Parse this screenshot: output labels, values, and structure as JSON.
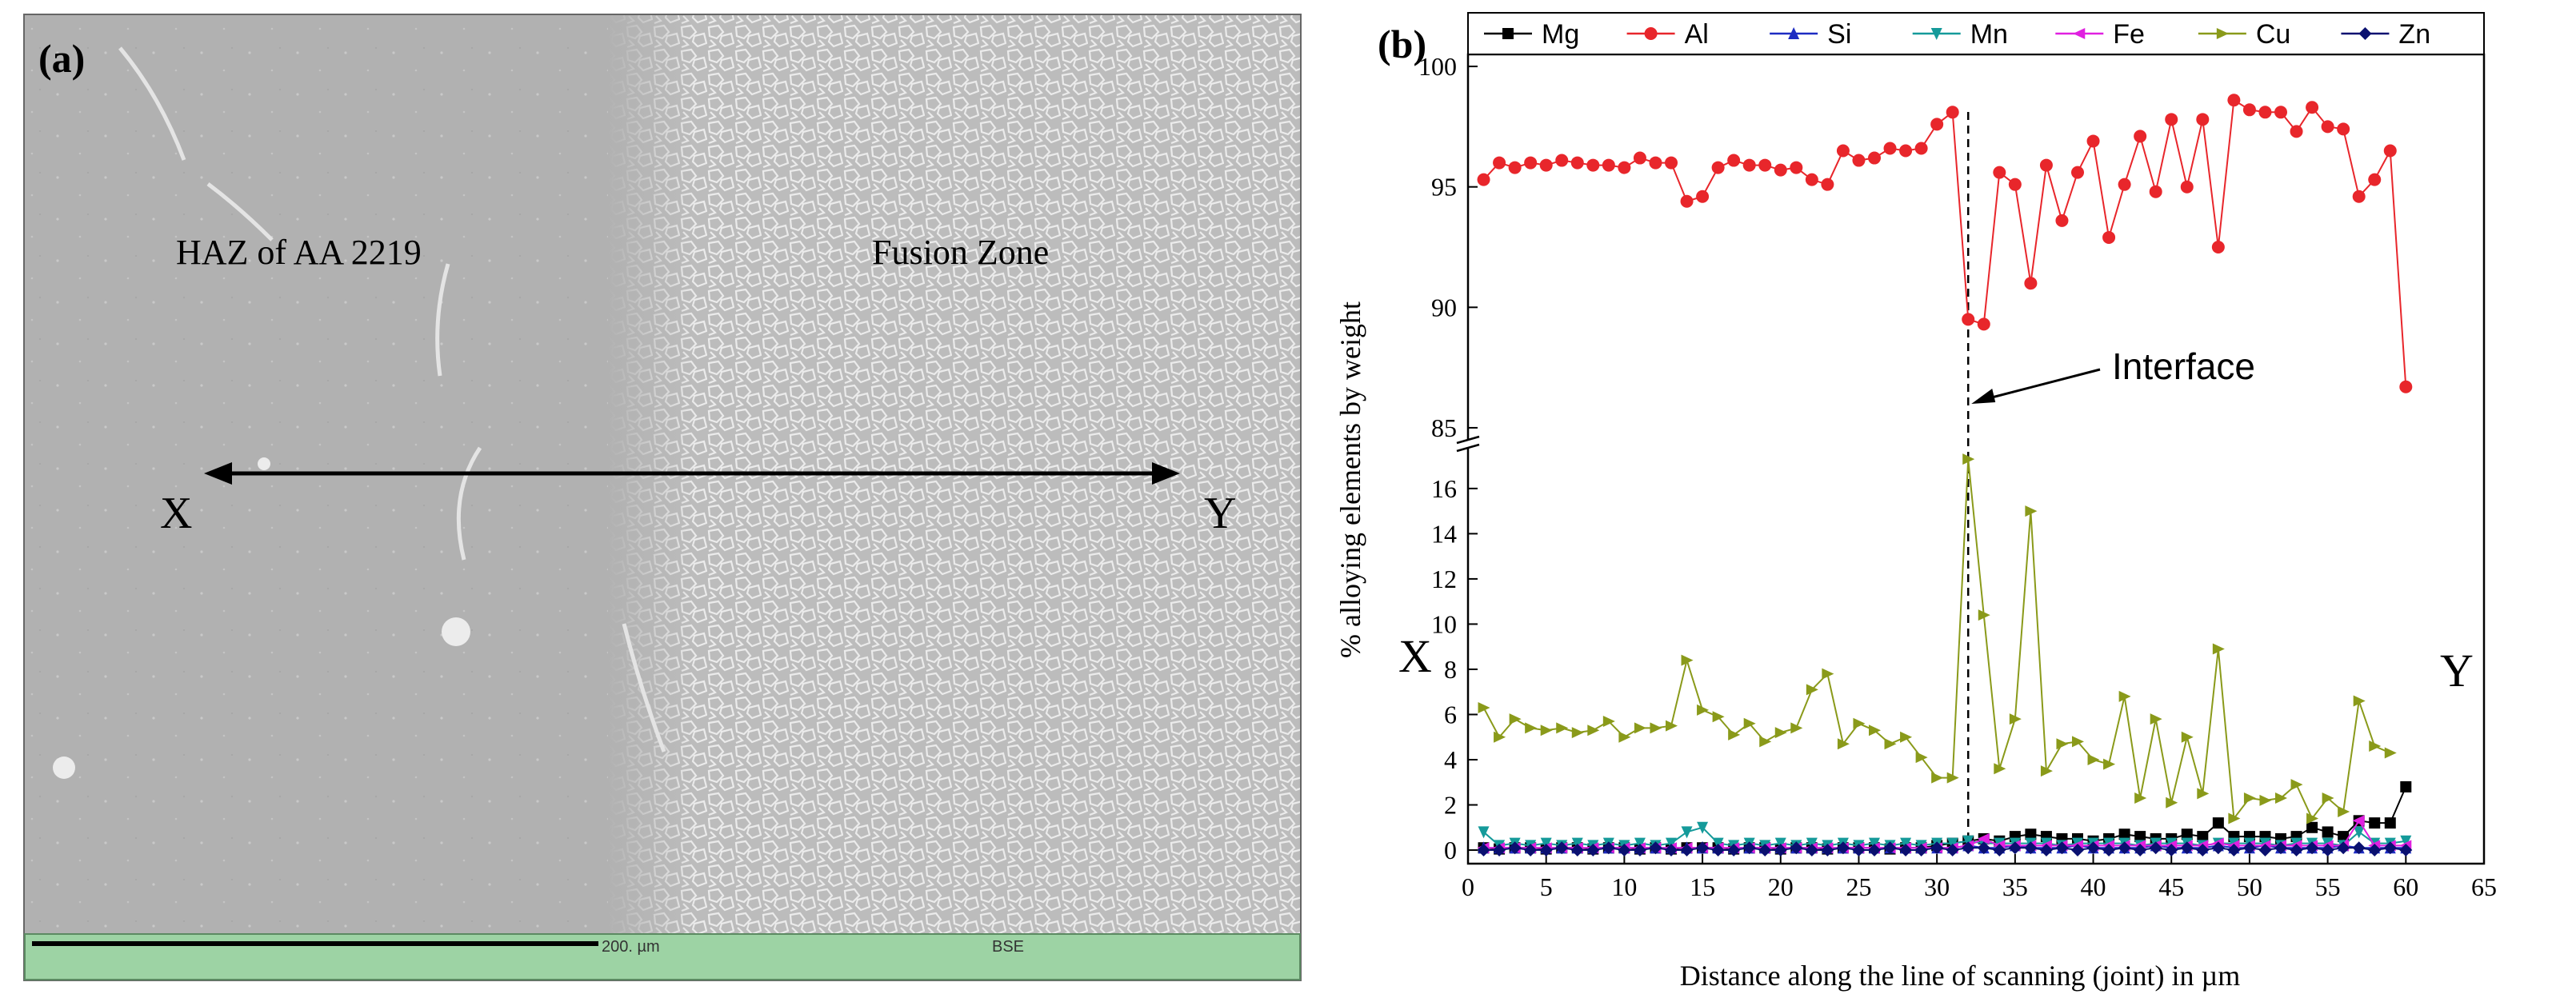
{
  "panel_a": {
    "label": "(a)",
    "haz_label": "HAZ of AA 2219",
    "fusion_label": "Fusion Zone",
    "x_label": "X",
    "y_label": "Y",
    "scalebar_text": "200. µm",
    "mode_text": "BSE"
  },
  "chart_data": {
    "type": "line",
    "panel_label": "(b)",
    "title": "",
    "xlabel": "Distance along the line of scanning (joint) in µm",
    "ylabel": "% alloying elements by weight",
    "xlim": [
      0,
      65
    ],
    "x_ticks": [
      0,
      5,
      10,
      15,
      20,
      25,
      30,
      35,
      40,
      45,
      50,
      55,
      60,
      65
    ],
    "ylim_lower": [
      -0.6,
      17.8
    ],
    "ylim_upper": [
      84.5,
      100.5
    ],
    "y_ticks_lower": [
      0,
      2,
      4,
      6,
      8,
      10,
      12,
      14,
      16
    ],
    "y_ticks_upper": [
      85,
      90,
      95,
      100
    ],
    "axis_break": true,
    "legend_position": "top",
    "annotations": {
      "interface": "Interface",
      "x_marker": "X",
      "y_marker": "Y",
      "interface_x": 32
    },
    "x": [
      1,
      2,
      3,
      4,
      5,
      6,
      7,
      8,
      9,
      10,
      11,
      12,
      13,
      14,
      15,
      16,
      17,
      18,
      19,
      20,
      21,
      22,
      23,
      24,
      25,
      26,
      27,
      28,
      29,
      30,
      31,
      32,
      33,
      34,
      35,
      36,
      37,
      38,
      39,
      40,
      41,
      42,
      43,
      44,
      45,
      46,
      47,
      48,
      49,
      50,
      51,
      52,
      53,
      54,
      55,
      56,
      57,
      58,
      59,
      60
    ],
    "series": [
      {
        "name": "Mg",
        "color": "#000000",
        "marker": "square",
        "values": [
          0.1,
          0.05,
          0.1,
          0.1,
          0.05,
          0.1,
          0.1,
          0.05,
          0.1,
          0.1,
          0.05,
          0.1,
          0.05,
          0.1,
          0.1,
          0.1,
          0.05,
          0.1,
          0.1,
          0.05,
          0.1,
          0.1,
          0.05,
          0.1,
          0.1,
          0.1,
          0.05,
          0.1,
          0.1,
          0.2,
          0.3,
          0.4,
          0.5,
          0.4,
          0.6,
          0.7,
          0.6,
          0.5,
          0.5,
          0.4,
          0.5,
          0.7,
          0.6,
          0.5,
          0.5,
          0.7,
          0.6,
          1.2,
          0.6,
          0.6,
          0.6,
          0.5,
          0.6,
          1.0,
          0.8,
          0.6,
          1.3,
          1.2,
          1.2,
          2.8
        ]
      },
      {
        "name": "Al",
        "color": "#e8262b",
        "marker": "circle",
        "values": [
          95.3,
          96.0,
          95.8,
          96.0,
          95.9,
          96.1,
          96.0,
          95.9,
          95.9,
          95.8,
          96.2,
          96.0,
          96.0,
          94.4,
          94.6,
          95.8,
          96.1,
          95.9,
          95.9,
          95.7,
          95.8,
          95.3,
          95.1,
          96.5,
          96.1,
          96.2,
          96.6,
          96.5,
          96.6,
          97.6,
          98.1,
          89.5,
          89.3,
          95.6,
          95.1,
          91.0,
          95.9,
          93.6,
          95.6,
          96.9,
          92.9,
          95.1,
          97.1,
          94.8,
          97.8,
          95.0,
          97.8,
          92.5,
          98.6,
          98.2,
          98.1,
          98.1,
          97.3,
          98.3,
          97.5,
          97.4,
          94.6,
          95.3,
          96.5,
          86.7
        ]
      },
      {
        "name": "Si",
        "color": "#1d2bc2",
        "marker": "triangle-up",
        "values": [
          0.1,
          0.1,
          0.1,
          0.1,
          0.1,
          0.1,
          0.1,
          0.1,
          0.1,
          0.1,
          0.1,
          0.1,
          0.1,
          0.1,
          0.1,
          0.1,
          0.1,
          0.1,
          0.1,
          0.1,
          0.1,
          0.1,
          0.1,
          0.1,
          0.1,
          0.1,
          0.1,
          0.1,
          0.1,
          0.1,
          0.1,
          0.2,
          0.1,
          0.1,
          0.2,
          0.1,
          0.1,
          0.1,
          0.2,
          0.1,
          0.1,
          0.1,
          0.1,
          0.2,
          0.1,
          0.1,
          0.1,
          0.2,
          0.1,
          0.1,
          0.2,
          0.1,
          0.1,
          0.1,
          0.1,
          0.2,
          0.1,
          0.1,
          0.1,
          0.1
        ]
      },
      {
        "name": "Mn",
        "color": "#159a9a",
        "marker": "triangle-down",
        "values": [
          0.8,
          0.2,
          0.3,
          0.2,
          0.3,
          0.2,
          0.3,
          0.2,
          0.3,
          0.2,
          0.3,
          0.2,
          0.3,
          0.8,
          1.0,
          0.3,
          0.2,
          0.3,
          0.2,
          0.3,
          0.2,
          0.3,
          0.2,
          0.3,
          0.2,
          0.3,
          0.2,
          0.3,
          0.2,
          0.3,
          0.3,
          0.4,
          0.3,
          0.3,
          0.3,
          0.3,
          0.3,
          0.2,
          0.3,
          0.3,
          0.3,
          0.3,
          0.2,
          0.3,
          0.3,
          0.3,
          0.2,
          0.3,
          0.3,
          0.3,
          0.3,
          0.2,
          0.3,
          0.3,
          0.3,
          0.2,
          0.8,
          0.3,
          0.3,
          0.4
        ]
      },
      {
        "name": "Fe",
        "color": "#e020e0",
        "marker": "triangle-left",
        "values": [
          0.1,
          0.1,
          0.1,
          0.1,
          0.1,
          0.1,
          0.1,
          0.1,
          0.1,
          0.1,
          0.1,
          0.1,
          0.1,
          0.1,
          0.1,
          0.1,
          0.1,
          0.1,
          0.1,
          0.1,
          0.1,
          0.1,
          0.1,
          0.1,
          0.1,
          0.1,
          0.1,
          0.1,
          0.1,
          0.1,
          0.1,
          0.2,
          0.5,
          0.2,
          0.2,
          0.2,
          0.2,
          0.2,
          0.2,
          0.2,
          0.2,
          0.2,
          0.2,
          0.2,
          0.2,
          0.2,
          0.2,
          0.3,
          0.2,
          0.2,
          0.2,
          0.2,
          0.2,
          0.2,
          0.2,
          0.2,
          1.3,
          0.2,
          0.2,
          0.2
        ]
      },
      {
        "name": "Cu",
        "color": "#8a9a1a",
        "marker": "triangle-right",
        "values": [
          6.3,
          5.0,
          5.8,
          5.4,
          5.3,
          5.4,
          5.2,
          5.3,
          5.7,
          5.0,
          5.4,
          5.4,
          5.5,
          8.4,
          6.2,
          5.9,
          5.1,
          5.6,
          4.8,
          5.2,
          5.4,
          7.1,
          7.8,
          4.7,
          5.6,
          5.3,
          4.7,
          5.0,
          4.1,
          3.2,
          3.2,
          17.3,
          10.4,
          3.6,
          5.8,
          15.0,
          3.5,
          4.7,
          4.8,
          4.0,
          3.8,
          6.8,
          2.3,
          5.8,
          2.1,
          5.0,
          2.5,
          8.9,
          1.4,
          2.3,
          2.2,
          2.3,
          2.9,
          1.4,
          2.3,
          1.7,
          6.6,
          4.6,
          4.3,
          null
        ]
      },
      {
        "name": "Zn",
        "color": "#0a1070",
        "marker": "diamond",
        "values": [
          0.0,
          0.0,
          0.1,
          0.0,
          0.0,
          0.1,
          0.0,
          0.0,
          0.1,
          0.0,
          0.0,
          0.1,
          0.0,
          0.0,
          0.1,
          0.0,
          0.0,
          0.1,
          0.0,
          0.0,
          0.1,
          0.0,
          0.0,
          0.1,
          0.0,
          0.0,
          0.1,
          0.0,
          0.0,
          0.1,
          0.0,
          0.1,
          0.1,
          0.0,
          0.1,
          0.1,
          0.0,
          0.1,
          0.0,
          0.1,
          0.0,
          0.1,
          0.0,
          0.1,
          0.0,
          0.1,
          0.0,
          0.1,
          0.0,
          0.1,
          0.0,
          0.1,
          0.0,
          0.1,
          0.0,
          0.1,
          0.1,
          0.0,
          0.1,
          0.0
        ]
      }
    ]
  }
}
